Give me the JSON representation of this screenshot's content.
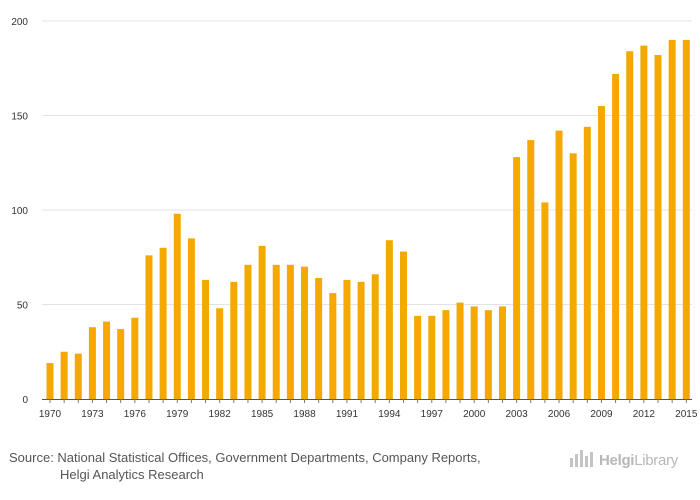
{
  "chart_data": {
    "type": "bar",
    "title": "",
    "xlabel": "",
    "ylabel": "",
    "ylim": [
      0,
      200
    ],
    "y_ticks": [
      0,
      50,
      100,
      150,
      200
    ],
    "grid": true,
    "bar_color": "#f5a800",
    "categories": [
      "1970",
      "1971",
      "1972",
      "1973",
      "1974",
      "1975",
      "1976",
      "1977",
      "1978",
      "1979",
      "1980",
      "1981",
      "1982",
      "1983",
      "1984",
      "1985",
      "1986",
      "1987",
      "1988",
      "1989",
      "1990",
      "1991",
      "1992",
      "1993",
      "1994",
      "1995",
      "1996",
      "1997",
      "1998",
      "1999",
      "2000",
      "2001",
      "2002",
      "2003",
      "2004",
      "2005",
      "2006",
      "2007",
      "2008",
      "2009",
      "2010",
      "2011",
      "2012",
      "2013",
      "2014",
      "2015"
    ],
    "x_tick_labels": [
      "1970",
      "1973",
      "1976",
      "1979",
      "1982",
      "1985",
      "1988",
      "1991",
      "1994",
      "1997",
      "2000",
      "2003",
      "2006",
      "2009",
      "2012",
      "2015"
    ],
    "values": [
      19,
      25,
      24,
      38,
      41,
      37,
      43,
      76,
      80,
      98,
      85,
      63,
      48,
      62,
      71,
      81,
      71,
      71,
      70,
      64,
      56,
      63,
      62,
      66,
      84,
      78,
      44,
      44,
      47,
      51,
      49,
      47,
      49,
      128,
      137,
      104,
      142,
      130,
      144,
      155,
      172,
      184,
      187,
      182,
      190,
      190
    ]
  },
  "footer": {
    "source_line1": "Source: National Statistical Offices, Government Departments, Company Reports,",
    "source_line2": "Helgi Analytics Research",
    "logo_part1": "Helgi",
    "logo_part2": "Library",
    "logo_icon": "bar-chart-icon"
  }
}
